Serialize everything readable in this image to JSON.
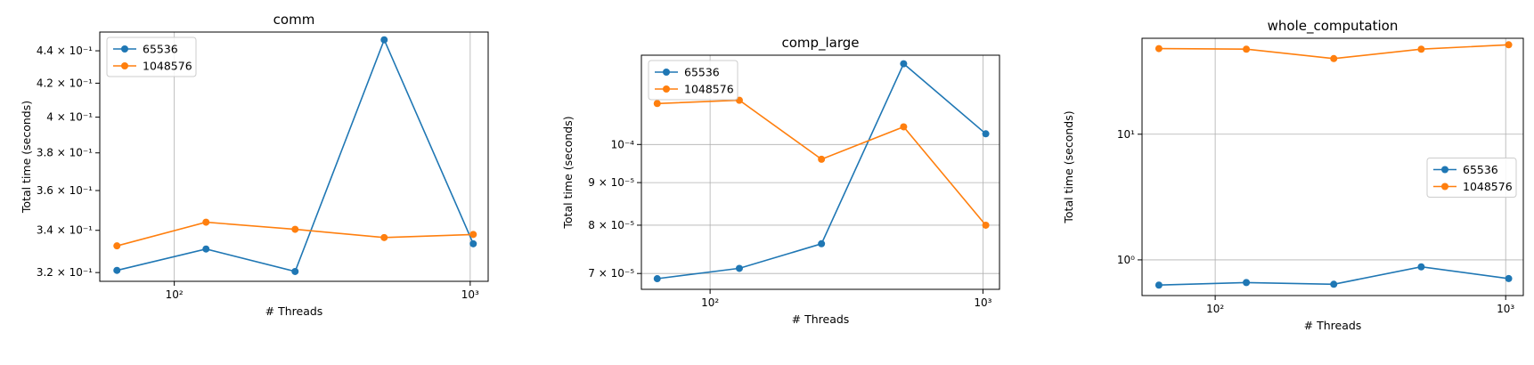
{
  "chart_data": [
    {
      "type": "line",
      "title": "comm",
      "xlabel": "# Threads",
      "ylabel": "Total time (seconds)",
      "xscale": "log",
      "yscale": "log",
      "xlim": [
        56,
        1150
      ],
      "ylim": [
        0.316,
        0.452
      ],
      "x": [
        64,
        128,
        256,
        512,
        1024
      ],
      "x_ticks": [
        {
          "value": 100,
          "label": "10²"
        },
        {
          "value": 1000,
          "label": "10³"
        }
      ],
      "y_ticks": [
        {
          "value": 0.32,
          "label": "3.2 × 10⁻¹"
        },
        {
          "value": 0.34,
          "label": "3.4 × 10⁻¹"
        },
        {
          "value": 0.36,
          "label": "3.6 × 10⁻¹"
        },
        {
          "value": 0.38,
          "label": "3.8 × 10⁻¹"
        },
        {
          "value": 0.4,
          "label": "4 × 10⁻¹"
        },
        {
          "value": 0.42,
          "label": "4.2 × 10⁻¹"
        },
        {
          "value": 0.44,
          "label": "4.4 × 10⁻¹"
        }
      ],
      "grid": "x-major",
      "legend_position": "upper-left",
      "series": [
        {
          "name": "65536",
          "color": "#1f77b4",
          "values": [
            0.321,
            0.331,
            0.3205,
            0.447,
            0.3335
          ]
        },
        {
          "name": "1048576",
          "color": "#ff7f0e",
          "values": [
            0.3325,
            0.344,
            0.3405,
            0.3365,
            0.338
          ]
        }
      ]
    },
    {
      "type": "line",
      "title": "comp_large",
      "xlabel": "# Threads",
      "ylabel": "Total time (seconds)",
      "xscale": "log",
      "yscale": "log",
      "xlim": [
        56,
        1150
      ],
      "ylim": [
        6.7e-05,
        0.000128
      ],
      "x": [
        64,
        128,
        256,
        512,
        1024
      ],
      "x_ticks": [
        {
          "value": 100,
          "label": "10²"
        },
        {
          "value": 1000,
          "label": "10³"
        }
      ],
      "y_ticks": [
        {
          "value": 7e-05,
          "label": "7 × 10⁻⁵"
        },
        {
          "value": 8e-05,
          "label": "8 × 10⁻⁵"
        },
        {
          "value": 9e-05,
          "label": "9 × 10⁻⁵"
        },
        {
          "value": 0.0001,
          "label": "10⁻⁴"
        }
      ],
      "grid": "major",
      "legend_position": "upper-left",
      "series": [
        {
          "name": "65536",
          "color": "#1f77b4",
          "values": [
            6.9e-05,
            7.1e-05,
            7.6e-05,
            0.000125,
            0.000103
          ]
        },
        {
          "name": "1048576",
          "color": "#ff7f0e",
          "values": [
            0.000112,
            0.000113,
            9.6e-05,
            0.000105,
            8e-05
          ]
        }
      ]
    },
    {
      "type": "line",
      "title": "whole_computation",
      "xlabel": "# Threads",
      "ylabel": "Total time (seconds)",
      "xscale": "log",
      "yscale": "log",
      "xlim": [
        56,
        1150
      ],
      "ylim": [
        0.52,
        58
      ],
      "x": [
        64,
        128,
        256,
        512,
        1024
      ],
      "x_ticks": [
        {
          "value": 100,
          "label": "10²"
        },
        {
          "value": 1000,
          "label": "10³"
        }
      ],
      "y_ticks": [
        {
          "value": 1,
          "label": "10⁰"
        },
        {
          "value": 10,
          "label": "10¹"
        }
      ],
      "grid": "major",
      "legend_position": "center-right",
      "series": [
        {
          "name": "65536",
          "color": "#1f77b4",
          "values": [
            0.63,
            0.66,
            0.64,
            0.88,
            0.71
          ]
        },
        {
          "name": "1048576",
          "color": "#ff7f0e",
          "values": [
            48.0,
            47.5,
            40.0,
            47.5,
            51.5
          ]
        }
      ]
    }
  ]
}
